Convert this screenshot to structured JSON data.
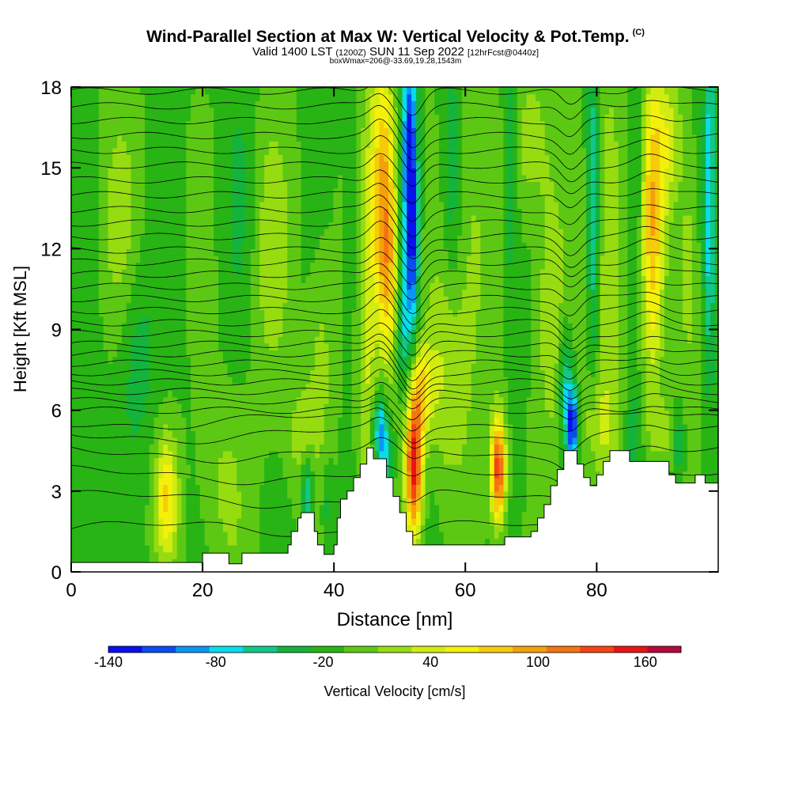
{
  "header": {
    "title": "Wind-Parallel Section at Max W: Vertical Velocity & Pot.Temp.",
    "copyright": "(C)",
    "valid_prefix": "Valid 1400 LST",
    "valid_utc": "(1200Z)",
    "valid_date": "SUN 11 Sep 2022",
    "forecast": "[12hrFcst@0440z]",
    "box_info": "boxWmax=206@-33.69,19.28,1543m"
  },
  "chart_data": {
    "type": "heatmap",
    "title": "Wind-Parallel Section at Max W: Vertical Velocity & Pot.Temp.",
    "xlabel": "Distance [nm]",
    "ylabel": "Height [Kft MSL]",
    "xlim": [
      0,
      98.5
    ],
    "ylim": [
      0,
      18
    ],
    "x_ticks": [
      0,
      20,
      40,
      60,
      80
    ],
    "y_ticks": [
      0,
      3,
      6,
      9,
      12,
      15,
      18
    ],
    "grid": false,
    "colorbar": {
      "label": "Vertical Velocity [cm/s]",
      "min": -140,
      "max": 180,
      "step": 20,
      "tick_values": [
        -140,
        -80,
        -20,
        40,
        100,
        160
      ],
      "colors": [
        "#0a10ee",
        "#0a4cf2",
        "#0a96f4",
        "#08dcec",
        "#10c888",
        "#14b43c",
        "#28b414",
        "#5cc814",
        "#96dc10",
        "#d2ec10",
        "#f5f00a",
        "#f5cc0a",
        "#f5a00a",
        "#f57412",
        "#f54414",
        "#e81414",
        "#b40a3c"
      ]
    },
    "terrain": [
      [
        0,
        0.35
      ],
      [
        20,
        0.35
      ],
      [
        20,
        0.7
      ],
      [
        24,
        0.7
      ],
      [
        24,
        0.3
      ],
      [
        26,
        0.3
      ],
      [
        26,
        0.7
      ],
      [
        33,
        0.7
      ],
      [
        33,
        1.0
      ],
      [
        33.5,
        1.0
      ],
      [
        33.5,
        1.5
      ],
      [
        34.5,
        1.5
      ],
      [
        34.5,
        2.0
      ],
      [
        35,
        2.0
      ],
      [
        35,
        2.2
      ],
      [
        37,
        2.2
      ],
      [
        37,
        1.5
      ],
      [
        37.5,
        1.5
      ],
      [
        37.5,
        1.0
      ],
      [
        38.5,
        1.0
      ],
      [
        38.5,
        0.65
      ],
      [
        40,
        0.65
      ],
      [
        40,
        1.0
      ],
      [
        40.5,
        1.0
      ],
      [
        40.5,
        2.0
      ],
      [
        41,
        2.0
      ],
      [
        41,
        2.7
      ],
      [
        42,
        2.7
      ],
      [
        42,
        3.0
      ],
      [
        43,
        3.0
      ],
      [
        43,
        3.5
      ],
      [
        44,
        3.5
      ],
      [
        44,
        4.0
      ],
      [
        45,
        4.0
      ],
      [
        45,
        4.6
      ],
      [
        46,
        4.6
      ],
      [
        46,
        4.2
      ],
      [
        48,
        4.2
      ],
      [
        48,
        3.5
      ],
      [
        49,
        3.5
      ],
      [
        49,
        2.8
      ],
      [
        50,
        2.8
      ],
      [
        50,
        2.2
      ],
      [
        51,
        2.2
      ],
      [
        51,
        1.5
      ],
      [
        52,
        1.5
      ],
      [
        52,
        1.0
      ],
      [
        66,
        1.0
      ],
      [
        66,
        1.3
      ],
      [
        70,
        1.3
      ],
      [
        70,
        1.5
      ],
      [
        71,
        1.5
      ],
      [
        71,
        2.0
      ],
      [
        72,
        2.0
      ],
      [
        72,
        2.5
      ],
      [
        73,
        2.5
      ],
      [
        73,
        3.2
      ],
      [
        74,
        3.2
      ],
      [
        74,
        3.8
      ],
      [
        75,
        3.8
      ],
      [
        75,
        4.5
      ],
      [
        77,
        4.5
      ],
      [
        77,
        4.0
      ],
      [
        78,
        4.0
      ],
      [
        78,
        3.5
      ],
      [
        79,
        3.5
      ],
      [
        79,
        3.2
      ],
      [
        80,
        3.2
      ],
      [
        80,
        3.6
      ],
      [
        81,
        3.6
      ],
      [
        81,
        4.1
      ],
      [
        82,
        4.1
      ],
      [
        82,
        4.5
      ],
      [
        85,
        4.5
      ],
      [
        85,
        4.1
      ],
      [
        91,
        4.1
      ],
      [
        91,
        3.6
      ],
      [
        92,
        3.6
      ],
      [
        92,
        3.3
      ],
      [
        95,
        3.3
      ],
      [
        95,
        3.6
      ],
      [
        96.5,
        3.6
      ],
      [
        96.5,
        3.3
      ],
      [
        98.5,
        3.3
      ]
    ],
    "updrafts": [
      {
        "x": 14.5,
        "y": 2.8,
        "w": 80,
        "sx": 1.2,
        "sy": 1.6
      },
      {
        "x": 23,
        "y": 3.2,
        "w": 25,
        "sx": 2.5,
        "sy": 2.5
      },
      {
        "x": 45,
        "y": 9.0,
        "w": 45,
        "sx": 1.2,
        "sy": 6
      },
      {
        "x": 47.5,
        "y": 14.5,
        "w": 100,
        "sx": 1.3,
        "sy": 3.5
      },
      {
        "x": 48.3,
        "y": 11.0,
        "w": 70,
        "sx": 1.0,
        "sy": 2.5
      },
      {
        "x": 52.2,
        "y": 4.0,
        "w": 175,
        "sx": 0.9,
        "sy": 1.9
      },
      {
        "x": 53.5,
        "y": 6.8,
        "w": 70,
        "sx": 1.2,
        "sy": 1.2
      },
      {
        "x": 65,
        "y": 3.8,
        "w": 160,
        "sx": 0.8,
        "sy": 1.4
      },
      {
        "x": 57,
        "y": 7.5,
        "w": 40,
        "sx": 2.0,
        "sy": 3.0
      },
      {
        "x": 61,
        "y": 12.0,
        "w": 30,
        "sx": 2.0,
        "sy": 5.0
      },
      {
        "x": 73,
        "y": 10.0,
        "w": 45,
        "sx": 1.5,
        "sy": 3.5
      },
      {
        "x": 82,
        "y": 12.0,
        "w": 45,
        "sx": 1.8,
        "sy": 5.0
      },
      {
        "x": 80,
        "y": 5.5,
        "w": 35,
        "sx": 2.0,
        "sy": 1.5
      },
      {
        "x": 88.5,
        "y": 13.0,
        "w": 90,
        "sx": 1.2,
        "sy": 4.0
      },
      {
        "x": 91,
        "y": 16.0,
        "w": 50,
        "sx": 1.5,
        "sy": 2.0
      },
      {
        "x": 94,
        "y": 11.0,
        "w": 40,
        "sx": 1.0,
        "sy": 3.0
      },
      {
        "x": 90,
        "y": 5.2,
        "w": 35,
        "sx": 1.5,
        "sy": 0.8
      },
      {
        "x": 7,
        "y": 13.0,
        "w": 30,
        "sx": 2.0,
        "sy": 3.0
      },
      {
        "x": 30,
        "y": 12.0,
        "w": 30,
        "sx": 2.5,
        "sy": 4.0
      },
      {
        "x": 38,
        "y": 8.0,
        "w": 30,
        "sx": 1.5,
        "sy": 3.0
      },
      {
        "x": 35,
        "y": 5.0,
        "w": 30,
        "sx": 1.5,
        "sy": 1.5
      },
      {
        "x": 70,
        "y": 16.0,
        "w": 35,
        "sx": 2.0,
        "sy": 2.0
      }
    ],
    "downdrafts": [
      {
        "x": 51.5,
        "y": 15.5,
        "w": -130,
        "sx": 0.8,
        "sy": 3.0
      },
      {
        "x": 52.0,
        "y": 11.5,
        "w": -80,
        "sx": 0.7,
        "sy": 2.5
      },
      {
        "x": 50.5,
        "y": 9.0,
        "w": -50,
        "sx": 0.7,
        "sy": 1.5
      },
      {
        "x": 47.0,
        "y": 5.3,
        "w": -90,
        "sx": 0.8,
        "sy": 1.0
      },
      {
        "x": 48.0,
        "y": 4.2,
        "w": -50,
        "sx": 0.7,
        "sy": 0.8
      },
      {
        "x": 76.3,
        "y": 5.5,
        "w": -130,
        "sx": 0.6,
        "sy": 1.0
      },
      {
        "x": 75.2,
        "y": 7.0,
        "w": -60,
        "sx": 0.7,
        "sy": 1.5
      },
      {
        "x": 79.5,
        "y": 13.5,
        "w": -70,
        "sx": 0.7,
        "sy": 4.5
      },
      {
        "x": 97.2,
        "y": 14.0,
        "w": -80,
        "sx": 0.6,
        "sy": 4.5
      },
      {
        "x": 36.0,
        "y": 3.0,
        "w": -70,
        "sx": 0.6,
        "sy": 1.0
      },
      {
        "x": 39.0,
        "y": 2.5,
        "w": -30,
        "sx": 0.6,
        "sy": 1.2
      },
      {
        "x": 92.5,
        "y": 4.8,
        "w": -50,
        "sx": 0.6,
        "sy": 0.8
      },
      {
        "x": 85.5,
        "y": 5.0,
        "w": -40,
        "sx": 0.8,
        "sy": 1.2
      },
      {
        "x": 86.0,
        "y": 14.0,
        "w": -30,
        "sx": 0.8,
        "sy": 4.0
      },
      {
        "x": 67.0,
        "y": 15.0,
        "w": -40,
        "sx": 0.8,
        "sy": 4.0
      },
      {
        "x": 58.0,
        "y": 15.0,
        "w": -35,
        "sx": 1.0,
        "sy": 3.5
      },
      {
        "x": 43.0,
        "y": 13.0,
        "w": -25,
        "sx": 1.0,
        "sy": 4.0
      },
      {
        "x": 10.0,
        "y": 8.0,
        "w": -30,
        "sx": 2.0,
        "sy": 2.5
      },
      {
        "x": 3.0,
        "y": 3.0,
        "w": -20,
        "sx": 3.0,
        "sy": 2.0
      },
      {
        "x": 26.0,
        "y": 14.0,
        "w": -20,
        "sx": 2.0,
        "sy": 4.0
      }
    ],
    "isentropes_ft": [
      1.6,
      2.7,
      3.6,
      4.4,
      5.1,
      5.6,
      6.0,
      6.35,
      6.7,
      7.05,
      7.4,
      7.75,
      8.1,
      8.45,
      8.85,
      9.25,
      9.7,
      10.15,
      10.6,
      11.05,
      11.5,
      11.95,
      12.45,
      12.95,
      13.45,
      14.0,
      14.55,
      15.1,
      15.65,
      16.2,
      16.75,
      17.3,
      17.85
    ]
  }
}
